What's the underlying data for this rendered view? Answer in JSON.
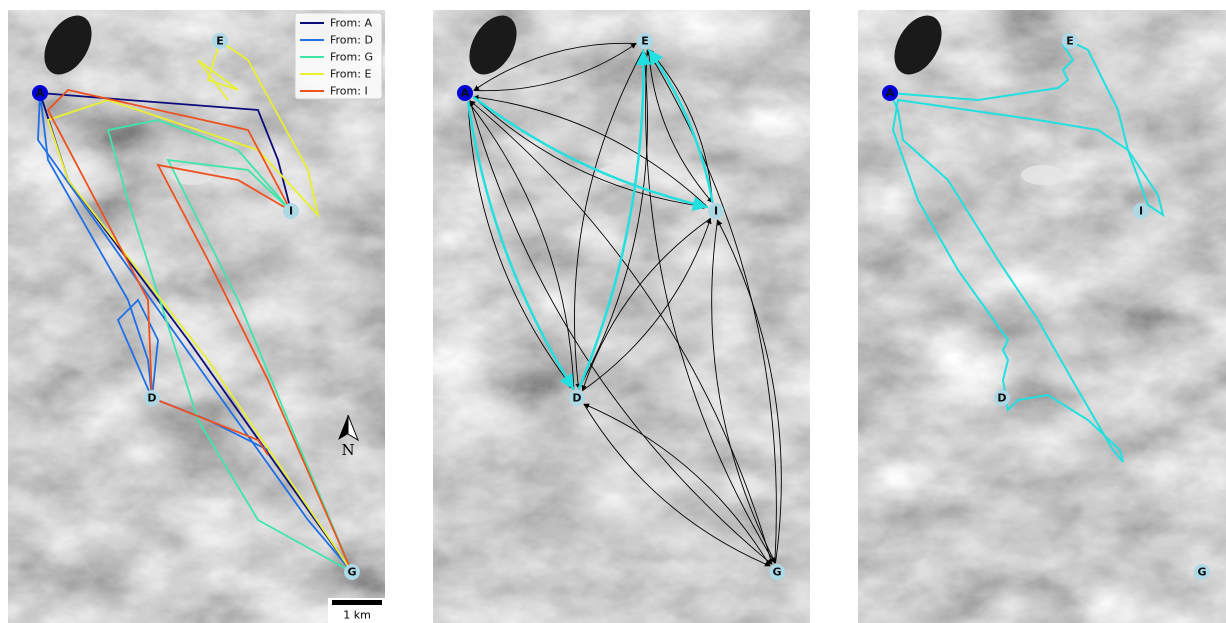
{
  "panels": [
    {
      "nodes": [
        {
          "label": "A"
        },
        {
          "label": "E"
        },
        {
          "label": "I"
        },
        {
          "label": "D"
        },
        {
          "label": "G"
        }
      ],
      "legend": [
        {
          "label": "From: A",
          "color": "#0b0b7a"
        },
        {
          "label": "From: D",
          "color": "#1f6fe6"
        },
        {
          "label": "From: G",
          "color": "#3ee6a8"
        },
        {
          "label": "From: E",
          "color": "#e8f030"
        },
        {
          "label": "From: I",
          "color": "#f0501e"
        }
      ],
      "north": "N",
      "scale_bar": "1 km"
    },
    {
      "nodes": [
        {
          "label": "A"
        },
        {
          "label": "E"
        },
        {
          "label": "I"
        },
        {
          "label": "D"
        },
        {
          "label": "G"
        }
      ]
    },
    {
      "nodes": [
        {
          "label": "A"
        },
        {
          "label": "E"
        },
        {
          "label": "I"
        },
        {
          "label": "D"
        },
        {
          "label": "G"
        }
      ]
    }
  ]
}
